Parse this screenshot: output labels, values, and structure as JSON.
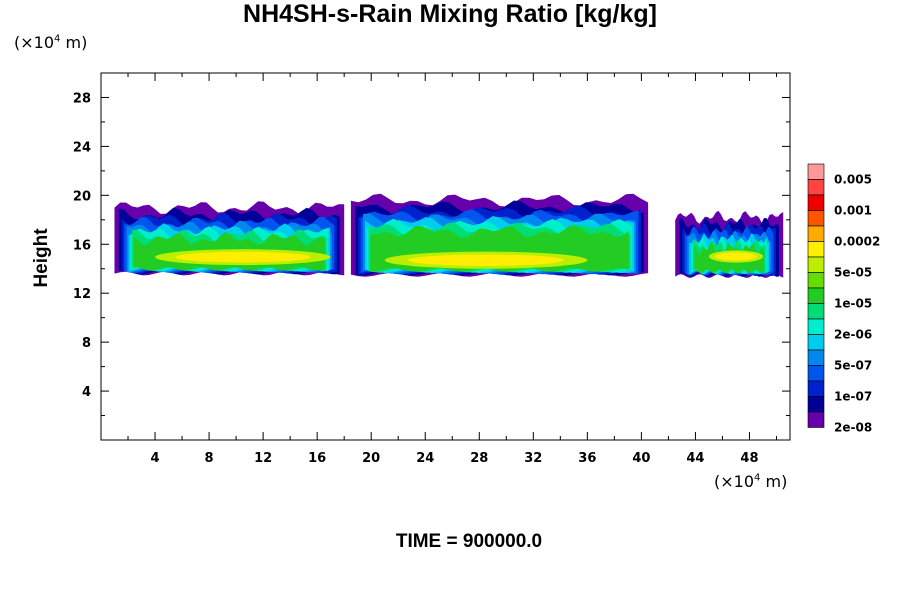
{
  "chart_data": {
    "type": "heatmap",
    "title": "NH4SH-s-Rain Mixing Ratio [kg/kg]",
    "ylabel": "Height",
    "x_unit": "(×10⁴ m)",
    "y_unit": "(×10⁴ m)",
    "xlim": [
      0,
      51
    ],
    "ylim": [
      0,
      30
    ],
    "x_ticks": [
      4,
      8,
      12,
      16,
      20,
      24,
      28,
      32,
      36,
      40,
      44,
      48
    ],
    "y_ticks": [
      4,
      8,
      12,
      16,
      20,
      24,
      28
    ],
    "colorbar": {
      "labels": [
        "0.005",
        "0.001",
        "0.0002",
        "5e-05",
        "1e-05",
        "2e-06",
        "5e-07",
        "1e-07",
        "2e-08"
      ],
      "colors": [
        "#ff9999",
        "#ff4444",
        "#ee0000",
        "#ff5500",
        "#ffaa00",
        "#ffee00",
        "#bbee00",
        "#66dd00",
        "#22cc22",
        "#00dd77",
        "#00eecc",
        "#00ccee",
        "#0088ee",
        "#0055ee",
        "#0022cc",
        "#000099",
        "#6600aa"
      ]
    },
    "clouds": [
      {
        "x_start": 1.0,
        "x_end": 18.0,
        "y_bottom": 13.6,
        "y_top": 19.0,
        "core_x": [
          4,
          17
        ],
        "core_y": [
          14.3,
          15.6
        ]
      },
      {
        "x_start": 18.5,
        "x_end": 40.5,
        "y_bottom": 13.5,
        "y_top": 19.6,
        "core_x": [
          21,
          36
        ],
        "core_y": [
          14.0,
          15.4
        ]
      },
      {
        "x_start": 42.5,
        "x_end": 50.5,
        "y_bottom": 13.4,
        "y_top": 18.2,
        "core_x": [
          45,
          49
        ],
        "core_y": [
          14.5,
          15.5
        ]
      }
    ]
  },
  "time_label": "TIME = 900000.0"
}
